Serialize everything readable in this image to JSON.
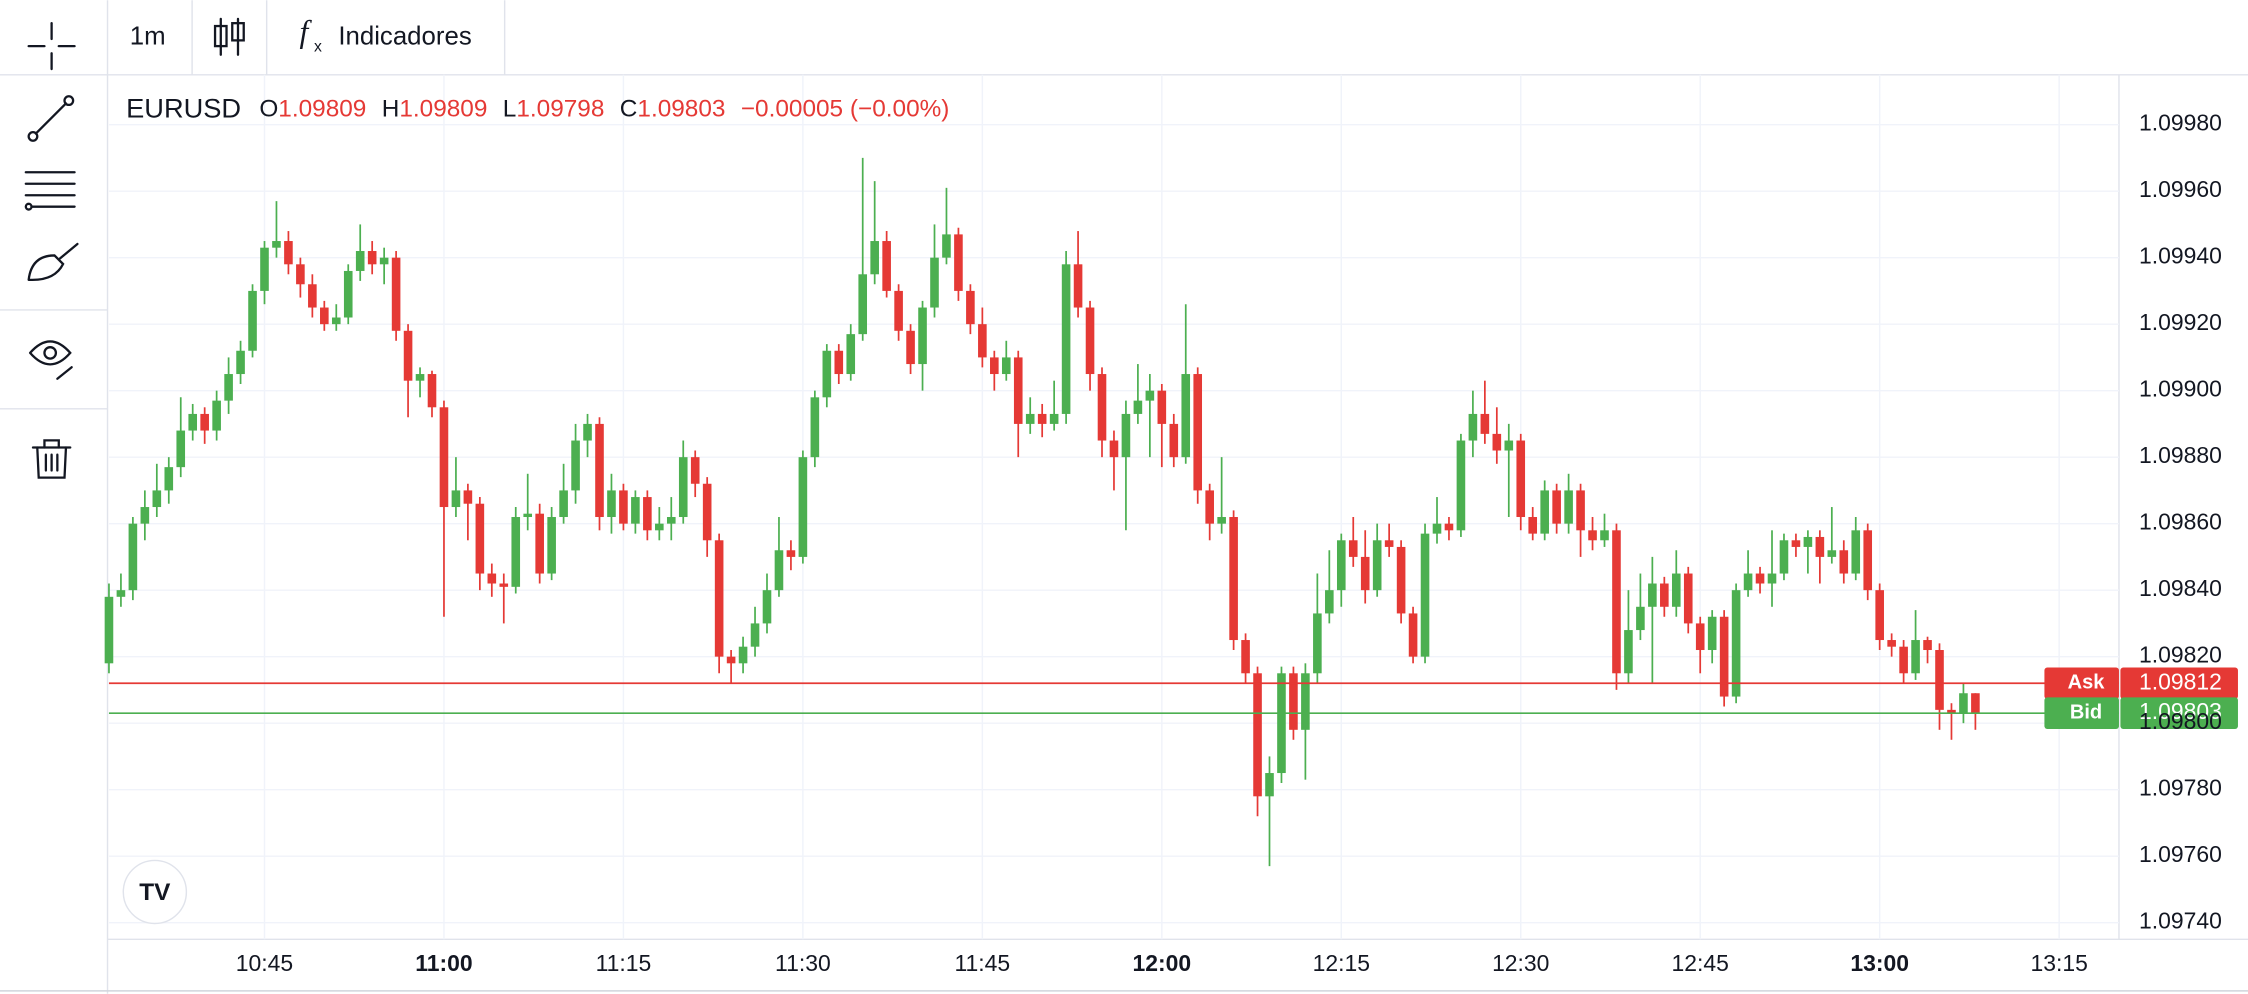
{
  "toolbar": {
    "interval": "1m",
    "indicators": "Indicadores"
  },
  "chart_data": {
    "type": "candlestick",
    "symbol": "EURUSD",
    "ohlc_labels": [
      "O",
      "H",
      "L",
      "C"
    ],
    "change_label": "−0.00005 (−0.00%)",
    "up_color": "#4caf50",
    "down_color": "#e53935",
    "grid": true,
    "ask": {
      "label": "Ask",
      "value": 1.09812
    },
    "bid": {
      "label": "Bid",
      "value": 1.09803
    },
    "xlim": [
      "10:32",
      "13:20"
    ],
    "xticks": [
      "10:45",
      "11:00",
      "11:15",
      "11:30",
      "11:45",
      "12:00",
      "12:15",
      "12:30",
      "12:45",
      "13:00",
      "13:15"
    ],
    "ylim": [
      1.09735,
      1.09995
    ],
    "yticks": [
      {
        "value": 1.0974,
        "label": "1.09740"
      },
      {
        "value": 1.0976,
        "label": "1.09760"
      },
      {
        "value": 1.0978,
        "label": "1.09780"
      },
      {
        "value": 1.098,
        "label": "1.09800"
      },
      {
        "value": 1.0982,
        "label": "1.09820"
      },
      {
        "value": 1.0984,
        "label": "1.09840"
      },
      {
        "value": 1.0986,
        "label": "1.09860"
      },
      {
        "value": 1.0988,
        "label": "1.09880"
      },
      {
        "value": 1.099,
        "label": "1.09900"
      },
      {
        "value": 1.0992,
        "label": "1.09920"
      },
      {
        "value": 1.0994,
        "label": "1.09940"
      },
      {
        "value": 1.0996,
        "label": "1.09960"
      },
      {
        "value": 1.0998,
        "label": "1.09980"
      }
    ],
    "x": [
      "10:32",
      "10:33",
      "10:34",
      "10:35",
      "10:36",
      "10:37",
      "10:38",
      "10:39",
      "10:40",
      "10:41",
      "10:42",
      "10:43",
      "10:44",
      "10:45",
      "10:46",
      "10:47",
      "10:48",
      "10:49",
      "10:50",
      "10:51",
      "10:52",
      "10:53",
      "10:54",
      "10:55",
      "10:56",
      "10:57",
      "10:58",
      "10:59",
      "11:00",
      "11:01",
      "11:02",
      "11:03",
      "11:04",
      "11:05",
      "11:06",
      "11:07",
      "11:08",
      "11:09",
      "11:10",
      "11:11",
      "11:12",
      "11:13",
      "11:14",
      "11:15",
      "11:16",
      "11:17",
      "11:18",
      "11:19",
      "11:20",
      "11:21",
      "11:22",
      "11:23",
      "11:24",
      "11:25",
      "11:26",
      "11:27",
      "11:28",
      "11:29",
      "11:30",
      "11:31",
      "11:32",
      "11:33",
      "11:34",
      "11:35",
      "11:36",
      "11:37",
      "11:38",
      "11:39",
      "11:40",
      "11:41",
      "11:42",
      "11:43",
      "11:44",
      "11:45",
      "11:46",
      "11:47",
      "11:48",
      "11:49",
      "11:50",
      "11:51",
      "11:52",
      "11:53",
      "11:54",
      "11:55",
      "11:56",
      "11:57",
      "11:58",
      "11:59",
      "12:00",
      "12:01",
      "12:02",
      "12:03",
      "12:04",
      "12:05",
      "12:06",
      "12:07",
      "12:08",
      "12:09",
      "12:10",
      "12:11",
      "12:12",
      "12:13",
      "12:14",
      "12:15",
      "12:16",
      "12:17",
      "12:18",
      "12:19",
      "12:20",
      "12:21",
      "12:22",
      "12:23",
      "12:24",
      "12:25",
      "12:26",
      "12:27",
      "12:28",
      "12:29",
      "12:30",
      "12:31",
      "12:32",
      "12:33",
      "12:34",
      "12:35",
      "12:36",
      "12:37",
      "12:38",
      "12:39",
      "12:40",
      "12:41",
      "12:42",
      "12:43",
      "12:44",
      "12:45",
      "12:46",
      "12:47",
      "12:48",
      "12:49",
      "12:50",
      "12:51",
      "12:52",
      "12:53",
      "12:54",
      "12:55",
      "12:56",
      "12:57",
      "12:58",
      "12:59",
      "13:00",
      "13:01",
      "13:02",
      "13:03",
      "13:04",
      "13:05",
      "13:06",
      "13:07",
      "13:08"
    ],
    "ohlc": [
      [
        1.09818,
        1.09842,
        1.09815,
        1.09838
      ],
      [
        1.09838,
        1.09845,
        1.09835,
        1.0984
      ],
      [
        1.0984,
        1.09862,
        1.09837,
        1.0986
      ],
      [
        1.0986,
        1.0987,
        1.09855,
        1.09865
      ],
      [
        1.09865,
        1.09878,
        1.09862,
        1.0987
      ],
      [
        1.0987,
        1.0988,
        1.09866,
        1.09877
      ],
      [
        1.09877,
        1.09898,
        1.09874,
        1.09888
      ],
      [
        1.09888,
        1.09896,
        1.09885,
        1.09893
      ],
      [
        1.09893,
        1.09895,
        1.09884,
        1.09888
      ],
      [
        1.09888,
        1.099,
        1.09885,
        1.09897
      ],
      [
        1.09897,
        1.0991,
        1.09893,
        1.09905
      ],
      [
        1.09905,
        1.09915,
        1.09902,
        1.09912
      ],
      [
        1.09912,
        1.09932,
        1.0991,
        1.0993
      ],
      [
        1.0993,
        1.09945,
        1.09926,
        1.09943
      ],
      [
        1.09943,
        1.09957,
        1.0994,
        1.09945
      ],
      [
        1.09945,
        1.09948,
        1.09935,
        1.09938
      ],
      [
        1.09938,
        1.0994,
        1.09928,
        1.09932
      ],
      [
        1.09932,
        1.09935,
        1.09922,
        1.09925
      ],
      [
        1.09925,
        1.09927,
        1.09918,
        1.0992
      ],
      [
        1.0992,
        1.09926,
        1.09918,
        1.09922
      ],
      [
        1.09922,
        1.09938,
        1.0992,
        1.09936
      ],
      [
        1.09936,
        1.0995,
        1.09933,
        1.09942
      ],
      [
        1.09942,
        1.09945,
        1.09935,
        1.09938
      ],
      [
        1.09938,
        1.09943,
        1.09932,
        1.0994
      ],
      [
        1.0994,
        1.09942,
        1.09915,
        1.09918
      ],
      [
        1.09918,
        1.0992,
        1.09892,
        1.09903
      ],
      [
        1.09903,
        1.09907,
        1.09898,
        1.09905
      ],
      [
        1.09905,
        1.09906,
        1.09892,
        1.09895
      ],
      [
        1.09895,
        1.09897,
        1.09832,
        1.09865
      ],
      [
        1.09865,
        1.0988,
        1.09862,
        1.0987
      ],
      [
        1.0987,
        1.09872,
        1.09855,
        1.09866
      ],
      [
        1.09866,
        1.09868,
        1.0984,
        1.09845
      ],
      [
        1.09845,
        1.09848,
        1.09838,
        1.09842
      ],
      [
        1.09842,
        1.09845,
        1.0983,
        1.09841
      ],
      [
        1.09841,
        1.09865,
        1.09839,
        1.09862
      ],
      [
        1.09862,
        1.09875,
        1.09858,
        1.09863
      ],
      [
        1.09863,
        1.09866,
        1.09842,
        1.09845
      ],
      [
        1.09845,
        1.09865,
        1.09843,
        1.09862
      ],
      [
        1.09862,
        1.09878,
        1.0986,
        1.0987
      ],
      [
        1.0987,
        1.0989,
        1.09866,
        1.09885
      ],
      [
        1.09885,
        1.09893,
        1.0988,
        1.0989
      ],
      [
        1.0989,
        1.09892,
        1.09858,
        1.09862
      ],
      [
        1.09862,
        1.09875,
        1.09857,
        1.0987
      ],
      [
        1.0987,
        1.09872,
        1.09858,
        1.0986
      ],
      [
        1.0986,
        1.0987,
        1.09857,
        1.09868
      ],
      [
        1.09868,
        1.0987,
        1.09855,
        1.09858
      ],
      [
        1.09858,
        1.09865,
        1.09855,
        1.0986
      ],
      [
        1.0986,
        1.09868,
        1.09855,
        1.09862
      ],
      [
        1.09862,
        1.09885,
        1.0986,
        1.0988
      ],
      [
        1.0988,
        1.09882,
        1.09868,
        1.09872
      ],
      [
        1.09872,
        1.09874,
        1.0985,
        1.09855
      ],
      [
        1.09855,
        1.09857,
        1.09815,
        1.0982
      ],
      [
        1.0982,
        1.09822,
        1.09812,
        1.09818
      ],
      [
        1.09818,
        1.09826,
        1.09815,
        1.09823
      ],
      [
        1.09823,
        1.09835,
        1.0982,
        1.0983
      ],
      [
        1.0983,
        1.09845,
        1.09827,
        1.0984
      ],
      [
        1.0984,
        1.09862,
        1.09838,
        1.09852
      ],
      [
        1.09852,
        1.09855,
        1.09846,
        1.0985
      ],
      [
        1.0985,
        1.09882,
        1.09848,
        1.0988
      ],
      [
        1.0988,
        1.099,
        1.09877,
        1.09898
      ],
      [
        1.09898,
        1.09914,
        1.09895,
        1.09912
      ],
      [
        1.09912,
        1.09914,
        1.09902,
        1.09905
      ],
      [
        1.09905,
        1.0992,
        1.09903,
        1.09917
      ],
      [
        1.09917,
        1.0997,
        1.09915,
        1.09935
      ],
      [
        1.09935,
        1.09963,
        1.09932,
        1.09945
      ],
      [
        1.09945,
        1.09948,
        1.09928,
        1.0993
      ],
      [
        1.0993,
        1.09932,
        1.09915,
        1.09918
      ],
      [
        1.09918,
        1.0992,
        1.09905,
        1.09908
      ],
      [
        1.09908,
        1.09927,
        1.099,
        1.09925
      ],
      [
        1.09925,
        1.0995,
        1.09922,
        1.0994
      ],
      [
        1.0994,
        1.09961,
        1.09938,
        1.09947
      ],
      [
        1.09947,
        1.09949,
        1.09927,
        1.0993
      ],
      [
        1.0993,
        1.09932,
        1.09917,
        1.0992
      ],
      [
        1.0992,
        1.09925,
        1.09907,
        1.0991
      ],
      [
        1.0991,
        1.09912,
        1.099,
        1.09905
      ],
      [
        1.09905,
        1.09915,
        1.09903,
        1.0991
      ],
      [
        1.0991,
        1.09912,
        1.0988,
        1.0989
      ],
      [
        1.0989,
        1.09898,
        1.09887,
        1.09893
      ],
      [
        1.09893,
        1.09896,
        1.09886,
        1.0989
      ],
      [
        1.0989,
        1.09903,
        1.09888,
        1.09893
      ],
      [
        1.09893,
        1.09942,
        1.0989,
        1.09938
      ],
      [
        1.09938,
        1.09948,
        1.09922,
        1.09925
      ],
      [
        1.09925,
        1.09927,
        1.099,
        1.09905
      ],
      [
        1.09905,
        1.09907,
        1.0988,
        1.09885
      ],
      [
        1.09885,
        1.09888,
        1.0987,
        1.0988
      ],
      [
        1.0988,
        1.09897,
        1.09858,
        1.09893
      ],
      [
        1.09893,
        1.09908,
        1.0989,
        1.09897
      ],
      [
        1.09897,
        1.09905,
        1.0988,
        1.099
      ],
      [
        1.099,
        1.09902,
        1.09877,
        1.0989
      ],
      [
        1.0989,
        1.09893,
        1.09877,
        1.0988
      ],
      [
        1.0988,
        1.09926,
        1.09878,
        1.09905
      ],
      [
        1.09905,
        1.09907,
        1.09866,
        1.0987
      ],
      [
        1.0987,
        1.09872,
        1.09855,
        1.0986
      ],
      [
        1.0986,
        1.0988,
        1.09857,
        1.09862
      ],
      [
        1.09862,
        1.09864,
        1.09822,
        1.09825
      ],
      [
        1.09825,
        1.09827,
        1.09812,
        1.09815
      ],
      [
        1.09815,
        1.09817,
        1.09772,
        1.09778
      ],
      [
        1.09778,
        1.0979,
        1.09757,
        1.09785
      ],
      [
        1.09785,
        1.09817,
        1.09782,
        1.09815
      ],
      [
        1.09815,
        1.09817,
        1.09795,
        1.09798
      ],
      [
        1.09798,
        1.09818,
        1.09783,
        1.09815
      ],
      [
        1.09815,
        1.09845,
        1.09812,
        1.09833
      ],
      [
        1.09833,
        1.09852,
        1.0983,
        1.0984
      ],
      [
        1.0984,
        1.09857,
        1.09835,
        1.09855
      ],
      [
        1.09855,
        1.09862,
        1.09847,
        1.0985
      ],
      [
        1.0985,
        1.09858,
        1.09836,
        1.0984
      ],
      [
        1.0984,
        1.0986,
        1.09838,
        1.09855
      ],
      [
        1.09855,
        1.0986,
        1.0985,
        1.09853
      ],
      [
        1.09853,
        1.09855,
        1.0983,
        1.09833
      ],
      [
        1.09833,
        1.09835,
        1.09818,
        1.0982
      ],
      [
        1.0982,
        1.0986,
        1.09818,
        1.09857
      ],
      [
        1.09857,
        1.09868,
        1.09854,
        1.0986
      ],
      [
        1.0986,
        1.09862,
        1.09855,
        1.09858
      ],
      [
        1.09858,
        1.09887,
        1.09856,
        1.09885
      ],
      [
        1.09885,
        1.099,
        1.0988,
        1.09893
      ],
      [
        1.09893,
        1.09903,
        1.09884,
        1.09887
      ],
      [
        1.09887,
        1.09895,
        1.09878,
        1.09882
      ],
      [
        1.09882,
        1.0989,
        1.09862,
        1.09885
      ],
      [
        1.09885,
        1.09887,
        1.09858,
        1.09862
      ],
      [
        1.09862,
        1.09865,
        1.09855,
        1.09857
      ],
      [
        1.09857,
        1.09873,
        1.09855,
        1.0987
      ],
      [
        1.0987,
        1.09872,
        1.09857,
        1.0986
      ],
      [
        1.0986,
        1.09875,
        1.09857,
        1.0987
      ],
      [
        1.0987,
        1.09872,
        1.0985,
        1.09858
      ],
      [
        1.09858,
        1.09862,
        1.09852,
        1.09855
      ],
      [
        1.09855,
        1.09863,
        1.09853,
        1.09858
      ],
      [
        1.09858,
        1.0986,
        1.0981,
        1.09815
      ],
      [
        1.09815,
        1.0984,
        1.09812,
        1.09828
      ],
      [
        1.09828,
        1.09845,
        1.09825,
        1.09835
      ],
      [
        1.09835,
        1.0985,
        1.09812,
        1.09842
      ],
      [
        1.09842,
        1.09844,
        1.09832,
        1.09835
      ],
      [
        1.09835,
        1.09852,
        1.09832,
        1.09845
      ],
      [
        1.09845,
        1.09847,
        1.09827,
        1.0983
      ],
      [
        1.0983,
        1.09832,
        1.09815,
        1.09822
      ],
      [
        1.09822,
        1.09834,
        1.09818,
        1.09832
      ],
      [
        1.09832,
        1.09834,
        1.09805,
        1.09808
      ],
      [
        1.09808,
        1.09842,
        1.09806,
        1.0984
      ],
      [
        1.0984,
        1.09852,
        1.09838,
        1.09845
      ],
      [
        1.09845,
        1.09847,
        1.09839,
        1.09842
      ],
      [
        1.09842,
        1.09858,
        1.09835,
        1.09845
      ],
      [
        1.09845,
        1.09857,
        1.09843,
        1.09855
      ],
      [
        1.09855,
        1.09857,
        1.0985,
        1.09853
      ],
      [
        1.09853,
        1.09858,
        1.09845,
        1.09856
      ],
      [
        1.09856,
        1.09858,
        1.09842,
        1.0985
      ],
      [
        1.0985,
        1.09865,
        1.09848,
        1.09852
      ],
      [
        1.09852,
        1.09855,
        1.09842,
        1.09845
      ],
      [
        1.09845,
        1.09862,
        1.09843,
        1.09858
      ],
      [
        1.09858,
        1.0986,
        1.09837,
        1.0984
      ],
      [
        1.0984,
        1.09842,
        1.09822,
        1.09825
      ],
      [
        1.09825,
        1.09827,
        1.0982,
        1.09823
      ],
      [
        1.09823,
        1.09825,
        1.09812,
        1.09815
      ],
      [
        1.09815,
        1.09834,
        1.09813,
        1.09825
      ],
      [
        1.09825,
        1.09826,
        1.09818,
        1.09822
      ],
      [
        1.09822,
        1.09824,
        1.09798,
        1.09804
      ],
      [
        1.09804,
        1.09806,
        1.09795,
        1.09803
      ],
      [
        1.09803,
        1.09812,
        1.098,
        1.09809
      ],
      [
        1.09809,
        1.09809,
        1.09798,
        1.09803
      ]
    ]
  }
}
